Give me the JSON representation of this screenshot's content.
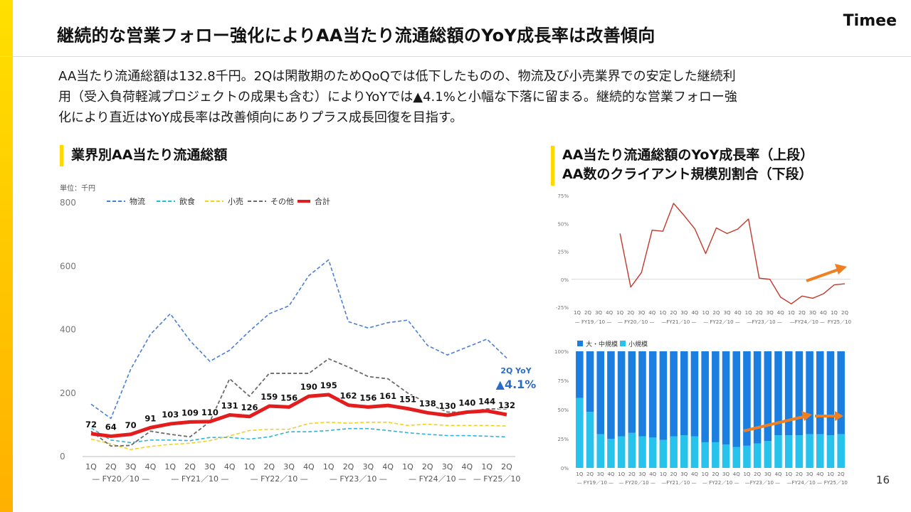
{
  "header": {
    "title": "継続的な営業フォロー強化によりAA当たり流通総額のYoY成長率は改善傾向",
    "logo": "Timee"
  },
  "summary": {
    "line1": "AA当たり流通総額は132.8千円。2Qは閑散期のためQoQでは低下したものの、物流及び小売業界での安定した継続利",
    "line2": "用（受入負荷軽減プロジェクトの成果も含む）によりYoYでは▲4.1%と小幅な下落に留まる。継続的な営業フォロー強",
    "line3": "化により直近はYoY成長率は改善傾向にありプラス成長回復を目指す。"
  },
  "page_number": "16",
  "colors": {
    "logistics": "#4a7fd6",
    "food": "#29b6e0",
    "retail": "#f2cf25",
    "other": "#6b6b6b",
    "total": "#e31d1d",
    "yoy_line": "#c0392b",
    "bar_large": "#1a7fe0",
    "bar_small": "#27c3ec",
    "arrow": "#f07f22",
    "accent": "#ffd800"
  },
  "chart_data": [
    {
      "type": "line",
      "title": "業界別AA当たり流通総額",
      "unit_label": "単位：千円",
      "ylim": [
        0,
        800
      ],
      "yticks": [
        "0",
        "200",
        "400",
        "600",
        "800"
      ],
      "categories": [
        "1Q",
        "2Q",
        "3Q",
        "4Q",
        "1Q",
        "2Q",
        "3Q",
        "4Q",
        "1Q",
        "2Q",
        "3Q",
        "4Q",
        "1Q",
        "2Q",
        "3Q",
        "4Q",
        "1Q",
        "2Q",
        "3Q",
        "4Q",
        "1Q",
        "2Q"
      ],
      "groups": [
        "— FY20／10 —",
        "— FY21／10 —",
        "— FY22／10 —",
        "— FY23／10 —",
        "— FY24／10 —",
        "— FY25／10"
      ],
      "legend": [
        "物流",
        "飲食",
        "小売",
        "その他",
        "合計"
      ],
      "legend_position": "top",
      "series": [
        {
          "name": "物流",
          "values": [
            165,
            120,
            275,
            385,
            450,
            365,
            300,
            335,
            395,
            450,
            475,
            570,
            620,
            425,
            405,
            422,
            430,
            350,
            320,
            345,
            370,
            310
          ]
        },
        {
          "name": "飲食",
          "values": [
            90,
            52,
            44,
            52,
            52,
            50,
            60,
            60,
            55,
            62,
            78,
            78,
            82,
            88,
            88,
            82,
            75,
            70,
            66,
            66,
            64,
            62
          ]
        },
        {
          "name": "小売",
          "values": [
            55,
            40,
            22,
            32,
            38,
            42,
            50,
            65,
            82,
            86,
            86,
            104,
            108,
            105,
            108,
            108,
            98,
            102,
            98,
            98,
            98,
            96
          ]
        },
        {
          "name": "その他",
          "values": [
            80,
            33,
            35,
            80,
            70,
            62,
            110,
            245,
            190,
            262,
            262,
            262,
            308,
            282,
            252,
            245,
            200,
            168,
            140,
            140,
            150,
            150
          ]
        },
        {
          "name": "合計",
          "values": [
            72,
            64,
            70,
            91,
            103,
            109,
            110,
            131,
            126,
            159,
            156,
            190,
            195,
            162,
            156,
            161,
            151,
            138,
            130,
            140,
            144,
            132
          ]
        }
      ],
      "data_labels": [
        "72",
        "64",
        "70",
        "91",
        "103",
        "109",
        "110",
        "131",
        "126",
        "159",
        "156",
        "190",
        "195",
        "162",
        "156",
        "161",
        "151",
        "138",
        "130",
        "140",
        "144",
        "132"
      ],
      "annotation": {
        "line1": "2Q YoY",
        "line2": "▲4.1%"
      }
    },
    {
      "type": "line",
      "title_line1": "AA当たり流通総額のYoY成長率（上段）",
      "title_line2": "AA数のクライアント規模別割合（下段）",
      "ylim": [
        -25,
        75
      ],
      "yticks": [
        "-25%",
        "0%",
        "25%",
        "50%",
        "75%"
      ],
      "categories": [
        "1Q",
        "2Q",
        "3Q",
        "4Q",
        "1Q",
        "2Q",
        "3Q",
        "4Q",
        "1Q",
        "2Q",
        "3Q",
        "4Q",
        "1Q",
        "2Q",
        "3Q",
        "4Q",
        "1Q",
        "2Q",
        "3Q",
        "4Q",
        "1Q",
        "2Q",
        "3Q",
        "4Q",
        "1Q",
        "2Q"
      ],
      "groups": [
        "— FY19／10 —",
        "— FY20／10 —",
        "—FY21／10 —",
        "— FY22／10 —",
        "—FY23／10 —",
        "—FY24／10 —",
        "FY25／10"
      ],
      "series": [
        {
          "values": [
            null,
            null,
            null,
            null,
            41,
            -7,
            6,
            44,
            43,
            68,
            57,
            45,
            23,
            46,
            41,
            45,
            54,
            1,
            0,
            -16,
            -22,
            -15,
            -17,
            -13,
            -5,
            -4
          ]
        }
      ]
    },
    {
      "type": "bar",
      "stacked": true,
      "ylim": [
        0,
        100
      ],
      "yticks": [
        "0%",
        "25%",
        "50%",
        "75%",
        "100%"
      ],
      "legend": [
        "大・中規模",
        "小規模"
      ],
      "legend_position": "top-left",
      "categories": [
        "1Q",
        "2Q",
        "3Q",
        "4Q",
        "1Q",
        "2Q",
        "3Q",
        "4Q",
        "1Q",
        "2Q",
        "3Q",
        "4Q",
        "1Q",
        "2Q",
        "3Q",
        "4Q",
        "1Q",
        "2Q",
        "3Q",
        "4Q",
        "1Q",
        "2Q",
        "3Q",
        "4Q",
        "1Q",
        "2Q"
      ],
      "groups": [
        "— FY19／10 —",
        "— FY20／10 —",
        "—FY21／10 —",
        "— FY22／10 —",
        "—FY23／10 —",
        "—FY24／10 —",
        "FY25／10"
      ],
      "series": [
        {
          "name": "大・中規模",
          "values": [
            40,
            52,
            71,
            75,
            73,
            70,
            73,
            74,
            76,
            73,
            72,
            73,
            78,
            78,
            80,
            82,
            81,
            79,
            77,
            72,
            72,
            72,
            71,
            71,
            72,
            71
          ]
        },
        {
          "name": "小規模",
          "values": [
            60,
            48,
            29,
            25,
            27,
            30,
            27,
            26,
            24,
            27,
            28,
            27,
            22,
            22,
            20,
            18,
            19,
            21,
            23,
            28,
            28,
            28,
            29,
            29,
            28,
            29
          ]
        }
      ]
    }
  ]
}
